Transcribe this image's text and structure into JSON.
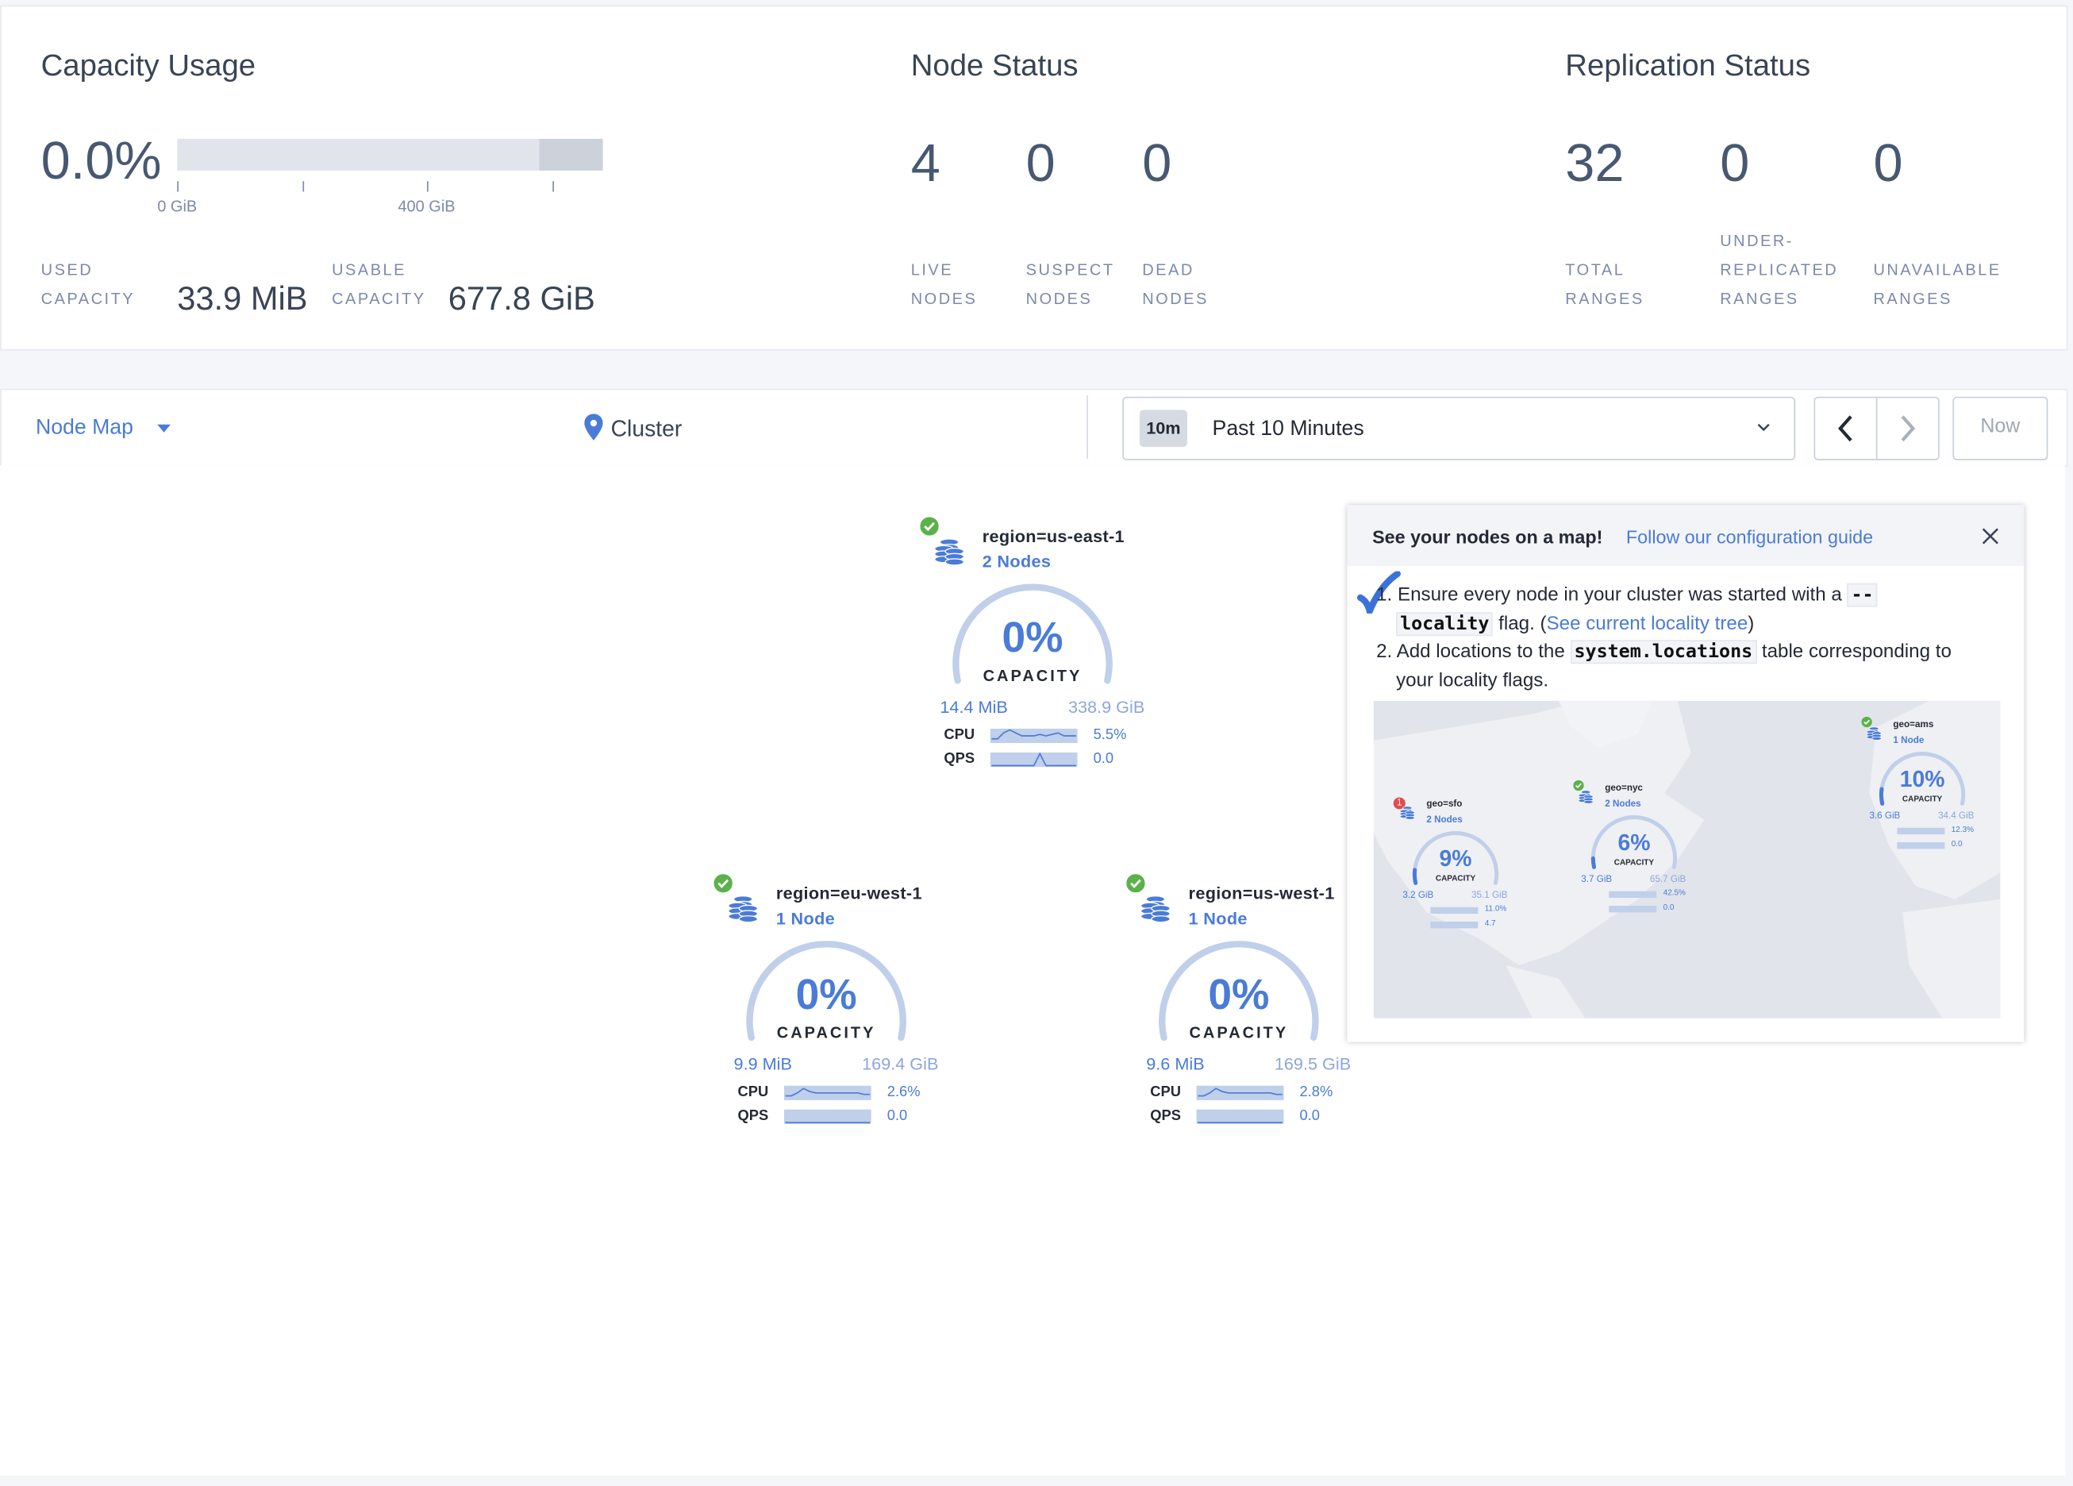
{
  "summary": {
    "capacity": {
      "title": "Capacity Usage",
      "percent": "0.0%",
      "axis_labels": [
        "0 GiB",
        "400 GiB"
      ],
      "used_label_1": "USED",
      "used_label_2": "CAPACITY",
      "used_value": "33.9 MiB",
      "usable_label_1": "USABLE",
      "usable_label_2": "CAPACITY",
      "usable_value": "677.8 GiB"
    },
    "node_status": {
      "title": "Node Status",
      "items": [
        {
          "value": "4",
          "label_1": "LIVE",
          "label_2": "NODES"
        },
        {
          "value": "0",
          "label_1": "SUSPECT",
          "label_2": "NODES"
        },
        {
          "value": "0",
          "label_1": "DEAD",
          "label_2": "NODES"
        }
      ]
    },
    "replication_status": {
      "title": "Replication Status",
      "items": [
        {
          "value": "32",
          "label_0": "",
          "label_1": "TOTAL",
          "label_2": "RANGES"
        },
        {
          "value": "0",
          "label_0": "UNDER-",
          "label_1": "REPLICATED",
          "label_2": "RANGES"
        },
        {
          "value": "0",
          "label_0": "",
          "label_1": "UNAVAILABLE",
          "label_2": "RANGES"
        }
      ]
    }
  },
  "toolbar": {
    "view_select": "Node Map",
    "breadcrumb": "Cluster",
    "time_badge": "10m",
    "time_range": "Past 10 Minutes",
    "now_label": "Now"
  },
  "nodes": [
    {
      "locality": "region=us-east-1",
      "count": "2 Nodes",
      "percent": "0%",
      "capacity_label": "CAPACITY",
      "used": "14.4 MiB",
      "total": "338.9 GiB",
      "cpu_label": "CPU",
      "cpu": "5.5%",
      "qps_label": "QPS",
      "qps": "0.0",
      "status": "live",
      "cpu_spark": [
        2,
        2,
        6,
        8,
        6,
        4,
        4,
        4,
        5,
        4,
        5,
        6,
        4,
        4,
        4
      ],
      "qps_spark": [
        0,
        0,
        0,
        0,
        0,
        0,
        0,
        0,
        8,
        0,
        0,
        0,
        0,
        0,
        0
      ]
    },
    {
      "locality": "region=eu-west-1",
      "count": "1 Node",
      "percent": "0%",
      "capacity_label": "CAPACITY",
      "used": "9.9 MiB",
      "total": "169.4 GiB",
      "cpu_label": "CPU",
      "cpu": "2.6%",
      "qps_label": "QPS",
      "qps": "0.0",
      "status": "live",
      "cpu_spark": [
        2,
        2,
        4,
        7,
        5,
        4,
        4,
        4,
        4,
        4,
        4,
        4,
        4,
        3,
        3
      ],
      "qps_spark": [
        0,
        0,
        0,
        0,
        0,
        0,
        0,
        0,
        0,
        0,
        0,
        0,
        0,
        0,
        0
      ]
    },
    {
      "locality": "region=us-west-1",
      "count": "1 Node",
      "percent": "0%",
      "capacity_label": "CAPACITY",
      "used": "9.6 MiB",
      "total": "169.5 GiB",
      "cpu_label": "CPU",
      "cpu": "2.8%",
      "qps_label": "QPS",
      "qps": "0.0",
      "status": "live",
      "cpu_spark": [
        2,
        2,
        4,
        7,
        5,
        4,
        4,
        4,
        4,
        4,
        4,
        4,
        4,
        3,
        3
      ],
      "qps_spark": [
        0,
        0,
        0,
        0,
        0,
        0,
        0,
        0,
        0,
        0,
        0,
        0,
        0,
        0,
        0
      ]
    }
  ],
  "map_prompt": {
    "title": "See your nodes on a map!",
    "guide_link": "Follow our configuration guide",
    "step1_prefix": "1. Ensure every node in your cluster was started with a",
    "step1_code_a": "--",
    "step1_code_b": "locality",
    "step1_mid": "flag. (",
    "step1_link": "See current locality tree",
    "step1_suffix": ")",
    "step2_prefix": "2. Add locations to the",
    "step2_code": "system.locations",
    "step2_suffix": "table corresponding to",
    "step2_line2": "your locality flags.",
    "preview_nodes": [
      {
        "locality": "geo=sfo",
        "count": "2 Nodes",
        "percent": "9%",
        "capacity_label": "CAPACITY",
        "used": "3.2 GiB",
        "total": "35.1 GiB",
        "cpu": "11.0%",
        "qps": "4.7",
        "status": "1"
      },
      {
        "locality": "geo=nyc",
        "count": "2 Nodes",
        "percent": "6%",
        "capacity_label": "CAPACITY",
        "used": "3.7 GiB",
        "total": "65.7 GiB",
        "cpu": "42.5%",
        "qps": "0.0",
        "status": "live"
      },
      {
        "locality": "geo=ams",
        "count": "1 Node",
        "percent": "10%",
        "capacity_label": "CAPACITY",
        "used": "3.6 GiB",
        "total": "34.4 GiB",
        "cpu": "12.3%",
        "qps": "0.0",
        "status": "live"
      }
    ]
  },
  "colors": {
    "accent": "#4a7bd8",
    "live": "#5bb14a",
    "warning": "#e04b4b",
    "gauge_track": "#c0cfea"
  }
}
